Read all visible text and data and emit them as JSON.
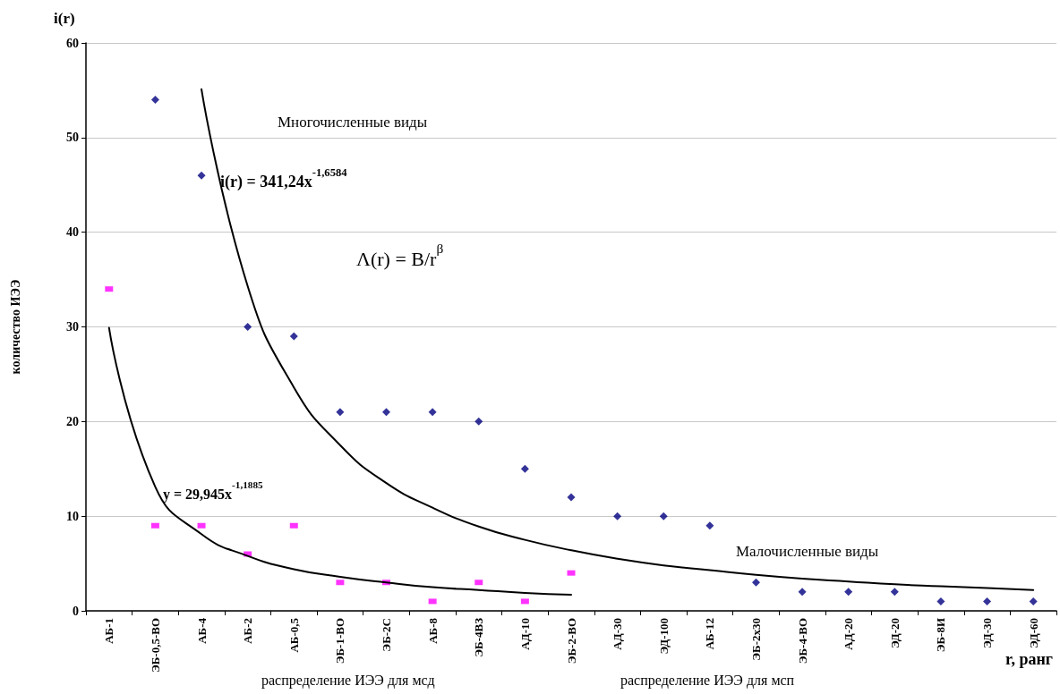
{
  "chart_data": {
    "type": "scatter",
    "xlabel": "r, ранг",
    "ylabel": "количество ИЭЭ",
    "categories": [
      "АБ-1",
      "ЭБ-0,5-ВО",
      "АБ-4",
      "АБ-2",
      "АБ-0,5",
      "ЭБ-1-ВО",
      "ЭБ-2С",
      "АБ-8",
      "ЭБ-4ВЗ",
      "АД-10",
      "ЭБ-2-ВО",
      "АД-30",
      "ЭД-100",
      "АБ-12",
      "ЭБ-2х30",
      "ЭБ-4-ВО",
      "АД-20",
      "ЭД-20",
      "ЭБ-8И",
      "ЭД-30",
      "ЭД-60"
    ],
    "series": [
      {
        "color": "#000080",
        "marker": "diamond",
        "values": [
          null,
          54,
          46,
          30,
          29,
          21,
          21,
          21,
          20,
          15,
          12,
          10,
          10,
          9,
          3,
          2,
          2,
          2,
          1,
          1,
          1
        ]
      },
      {
        "color": "#ff00ff",
        "marker": "square",
        "values": [
          34,
          9,
          9,
          6,
          9,
          3,
          3,
          1,
          3,
          1,
          4,
          null,
          null,
          null,
          null,
          null,
          null,
          null,
          null,
          null,
          null
        ]
      },
      {
        "type": "line",
        "color": "#000000",
        "marker": "none",
        "line_style": "solid",
        "values": [
          null,
          null,
          55.1,
          34.3,
          23.6,
          17.5,
          13.5,
          10.9,
          8.9,
          7.5,
          6.4,
          5.5,
          4.8,
          4.3,
          3.8,
          3.4,
          3.1,
          2.8,
          2.6,
          2.4,
          2.2
        ]
      },
      {
        "type": "line",
        "color": "#000000",
        "marker": "none",
        "line_style": "solid",
        "values": [
          29.9,
          13.1,
          8.1,
          5.8,
          4.4,
          3.6,
          3.0,
          2.5,
          2.2,
          1.9,
          1.7,
          null,
          null,
          null,
          null,
          null,
          null,
          null,
          null,
          null,
          null
        ]
      }
    ],
    "ylim": [
      0,
      60
    ],
    "yticks": [
      0,
      10,
      20,
      30,
      40,
      50,
      60
    ],
    "grid": "y",
    "annotations": [
      "i(r)",
      "Многочисленные виды",
      "i(r) = 341,24x$^{-1,6584}$",
      "Λ(r) = B/r$^{β}$",
      "y = 29,945x$^{-1,1885}$",
      "Малочисленные виды",
      "распределение ИЭЭ для мсд",
      "распределение ИЭЭ для мсп"
    ]
  }
}
